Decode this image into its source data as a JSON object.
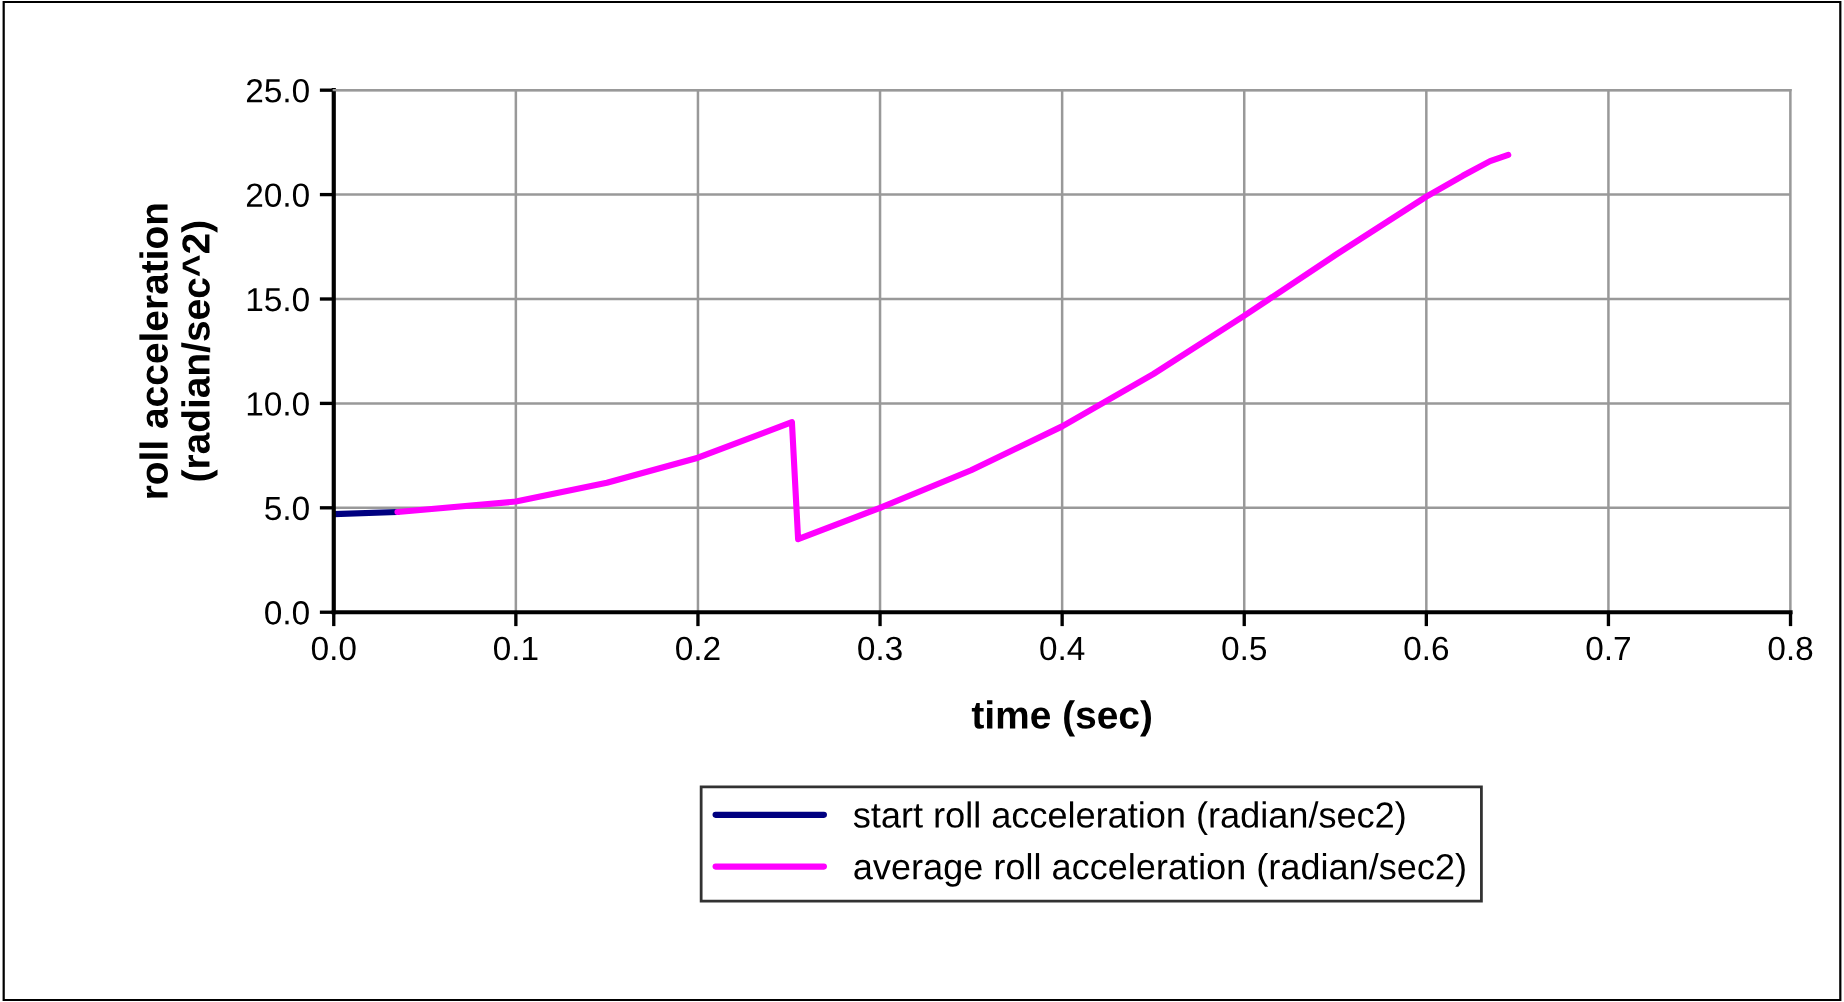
{
  "chart_data": {
    "type": "line",
    "xlabel": "time (sec)",
    "ylabel": "roll acceleration\n(radian/sec^2)",
    "xlim": [
      0,
      0.8
    ],
    "xticks": [
      {
        "value": 0,
        "label": "0.0"
      },
      {
        "value": 0.1,
        "label": "0.1"
      },
      {
        "value": 0.2,
        "label": "0.2"
      },
      {
        "value": 0.3,
        "label": "0.3"
      },
      {
        "value": 0.4,
        "label": "0.4"
      },
      {
        "value": 0.5,
        "label": "0.5"
      },
      {
        "value": 0.6,
        "label": "0.6"
      },
      {
        "value": 0.7,
        "label": "0.7"
      },
      {
        "value": 0.8,
        "label": "0.8"
      }
    ],
    "ylim": [
      0,
      25
    ],
    "yticks": [
      {
        "value": 0,
        "label": "0.0"
      },
      {
        "value": 5,
        "label": "5.0"
      },
      {
        "value": 10,
        "label": "10.0"
      },
      {
        "value": 15,
        "label": "15.0"
      },
      {
        "value": 20,
        "label": "20.0"
      },
      {
        "value": 25,
        "label": "25.0"
      }
    ],
    "grid": true,
    "legend": "bottom",
    "marker": "none",
    "line_style": "solid",
    "series": [
      {
        "name": "start roll acceleration (radian/sec2)",
        "color": "#000080",
        "x": [
          0,
          0.035
        ],
        "values": [
          4.7,
          4.8
        ]
      },
      {
        "name": "average roll acceleration (radian/sec2)",
        "color": "#ff00ff",
        "x": [
          0.035,
          0.1,
          0.15,
          0.2,
          0.2516,
          0.255,
          0.3,
          0.35,
          0.4,
          0.45,
          0.5,
          0.55,
          0.6,
          0.62,
          0.635,
          0.645
        ],
        "values": [
          4.8,
          5.3,
          6.2,
          7.4,
          9.1,
          3.5,
          5.0,
          6.8,
          8.9,
          11.4,
          14.2,
          17.1,
          19.9,
          20.9,
          21.6,
          21.9
        ]
      }
    ]
  }
}
